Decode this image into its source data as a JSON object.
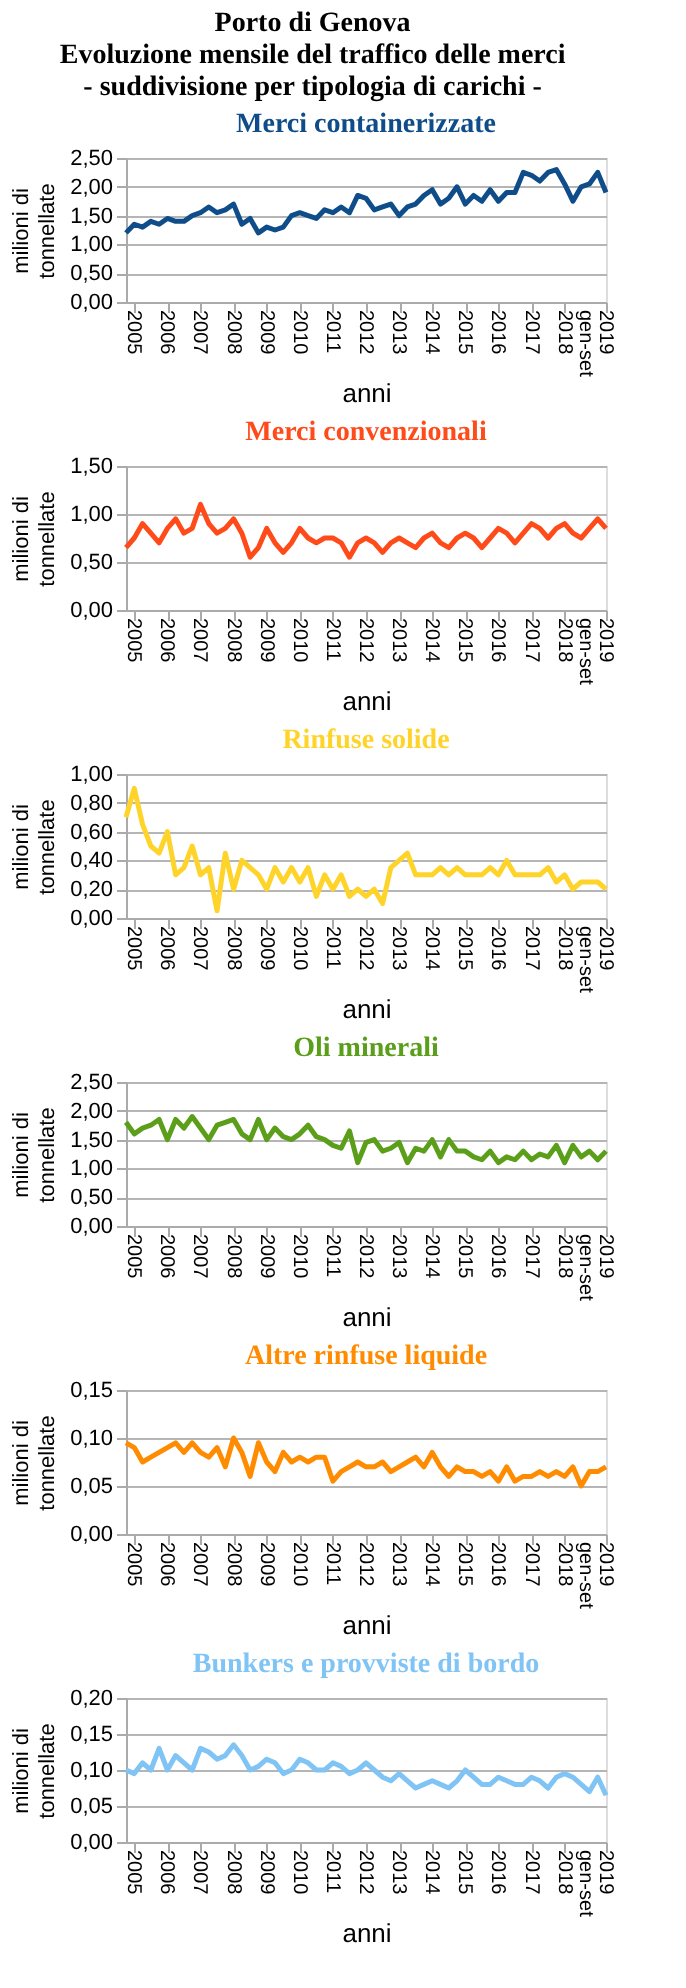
{
  "chart_data": [
    {
      "type": "line",
      "title": "Merci containerizzate",
      "annotations": [
        "Porto di Genova",
        "Evoluzione mensile del traffico delle merci",
        "- suddivisione per tipologia di carichi -"
      ],
      "xlabel": "anni",
      "ylabel": "milioni di tonnellate",
      "grid": "y",
      "line_style": "solid",
      "categories": [
        null,
        "2005",
        null,
        null,
        null,
        "2006",
        null,
        null,
        null,
        "2007",
        null,
        null,
        null,
        "2008",
        null,
        null,
        null,
        "2009",
        null,
        null,
        null,
        "2010",
        null,
        null,
        null,
        "2011",
        null,
        null,
        null,
        "2012",
        null,
        null,
        null,
        "2013",
        null,
        null,
        null,
        "2014",
        null,
        null,
        null,
        "2015",
        null,
        null,
        null,
        "2016",
        null,
        null,
        null,
        "2017",
        null,
        null,
        null,
        "2018",
        null,
        null,
        null,
        null,
        "2019 gen-set"
      ],
      "ylim": [
        0,
        2.5
      ],
      "yticks": [
        {
          "value": 0,
          "label": "0,00"
        },
        {
          "value": 0.5,
          "label": "0,50"
        },
        {
          "value": 1,
          "label": "1,00"
        },
        {
          "value": 1.5,
          "label": "1,50"
        },
        {
          "value": 2,
          "label": "2,00"
        },
        {
          "value": 2.5,
          "label": "2,50"
        }
      ],
      "series": [
        {
          "color": "#0f4c8a",
          "values": [
            1.2,
            1.35,
            1.3,
            1.4,
            1.35,
            1.45,
            1.4,
            1.4,
            1.5,
            1.55,
            1.65,
            1.55,
            1.6,
            1.7,
            1.35,
            1.45,
            1.2,
            1.3,
            1.25,
            1.3,
            1.5,
            1.55,
            1.5,
            1.45,
            1.6,
            1.55,
            1.65,
            1.55,
            1.85,
            1.8,
            1.6,
            1.65,
            1.7,
            1.5,
            1.65,
            1.7,
            1.85,
            1.95,
            1.7,
            1.8,
            2.0,
            1.7,
            1.85,
            1.75,
            1.95,
            1.75,
            1.9,
            1.9,
            2.25,
            2.2,
            2.1,
            2.25,
            2.3,
            2.05,
            1.75,
            2.0,
            2.05,
            2.25,
            1.9
          ]
        }
      ]
    },
    {
      "type": "line",
      "title": "Merci convenzionali",
      "xlabel": "anni",
      "ylabel": "milioni di tonnellate",
      "grid": "y",
      "line_style": "solid",
      "categories": [
        null,
        "2005",
        null,
        null,
        null,
        "2006",
        null,
        null,
        null,
        "2007",
        null,
        null,
        null,
        "2008",
        null,
        null,
        null,
        "2009",
        null,
        null,
        null,
        "2010",
        null,
        null,
        null,
        "2011",
        null,
        null,
        null,
        "2012",
        null,
        null,
        null,
        "2013",
        null,
        null,
        null,
        "2014",
        null,
        null,
        null,
        "2015",
        null,
        null,
        null,
        "2016",
        null,
        null,
        null,
        "2017",
        null,
        null,
        null,
        "2018",
        null,
        null,
        null,
        null,
        "2019 gen-set"
      ],
      "ylim": [
        0,
        1.5
      ],
      "yticks": [
        {
          "value": 0,
          "label": "0,00"
        },
        {
          "value": 0.5,
          "label": "0,50"
        },
        {
          "value": 1,
          "label": "1,00"
        },
        {
          "value": 1.5,
          "label": "1,50"
        }
      ],
      "series": [
        {
          "color": "#ff4a1a",
          "values": [
            0.65,
            0.75,
            0.9,
            0.8,
            0.7,
            0.85,
            0.95,
            0.8,
            0.85,
            1.1,
            0.9,
            0.8,
            0.85,
            0.95,
            0.8,
            0.55,
            0.65,
            0.85,
            0.7,
            0.6,
            0.7,
            0.85,
            0.75,
            0.7,
            0.75,
            0.75,
            0.7,
            0.55,
            0.7,
            0.75,
            0.7,
            0.6,
            0.7,
            0.75,
            0.7,
            0.65,
            0.75,
            0.8,
            0.7,
            0.65,
            0.75,
            0.8,
            0.75,
            0.65,
            0.75,
            0.85,
            0.8,
            0.7,
            0.8,
            0.9,
            0.85,
            0.75,
            0.85,
            0.9,
            0.8,
            0.75,
            0.85,
            0.95,
            0.85
          ]
        }
      ]
    },
    {
      "type": "line",
      "title": "Rinfuse solide",
      "xlabel": "anni",
      "ylabel": "milioni di tonnellate",
      "grid": "y",
      "line_style": "solid",
      "categories": [
        null,
        "2005",
        null,
        null,
        null,
        "2006",
        null,
        null,
        null,
        "2007",
        null,
        null,
        null,
        "2008",
        null,
        null,
        null,
        "2009",
        null,
        null,
        null,
        "2010",
        null,
        null,
        null,
        "2011",
        null,
        null,
        null,
        "2012",
        null,
        null,
        null,
        "2013",
        null,
        null,
        null,
        "2014",
        null,
        null,
        null,
        "2015",
        null,
        null,
        null,
        "2016",
        null,
        null,
        null,
        "2017",
        null,
        null,
        null,
        "2018",
        null,
        null,
        null,
        null,
        "2019 gen-set"
      ],
      "ylim": [
        0,
        1
      ],
      "yticks": [
        {
          "value": 0,
          "label": "0,00"
        },
        {
          "value": 0.2,
          "label": "0,20"
        },
        {
          "value": 0.4,
          "label": "0,40"
        },
        {
          "value": 0.6,
          "label": "0,60"
        },
        {
          "value": 0.8,
          "label": "0,80"
        },
        {
          "value": 1,
          "label": "1,00"
        }
      ],
      "series": [
        {
          "color": "#ffd42a",
          "values": [
            0.7,
            0.9,
            0.65,
            0.5,
            0.45,
            0.6,
            0.3,
            0.35,
            0.5,
            0.3,
            0.35,
            0.05,
            0.45,
            0.2,
            0.4,
            0.35,
            0.3,
            0.2,
            0.35,
            0.25,
            0.35,
            0.25,
            0.35,
            0.15,
            0.3,
            0.2,
            0.3,
            0.15,
            0.2,
            0.15,
            0.2,
            0.1,
            0.35,
            0.4,
            0.45,
            0.3,
            0.3,
            0.3,
            0.35,
            0.3,
            0.35,
            0.3,
            0.3,
            0.3,
            0.35,
            0.3,
            0.4,
            0.3,
            0.3,
            0.3,
            0.3,
            0.35,
            0.25,
            0.3,
            0.2,
            0.25,
            0.25,
            0.25,
            0.2
          ]
        }
      ]
    },
    {
      "type": "line",
      "title": "Oli minerali",
      "xlabel": "anni",
      "ylabel": "milioni di tonnellate",
      "grid": "y",
      "line_style": "solid",
      "categories": [
        null,
        "2005",
        null,
        null,
        null,
        "2006",
        null,
        null,
        null,
        "2007",
        null,
        null,
        null,
        "2008",
        null,
        null,
        null,
        "2009",
        null,
        null,
        null,
        "2010",
        null,
        null,
        null,
        "2011",
        null,
        null,
        null,
        "2012",
        null,
        null,
        null,
        "2013",
        null,
        null,
        null,
        "2014",
        null,
        null,
        null,
        "2015",
        null,
        null,
        null,
        "2016",
        null,
        null,
        null,
        "2017",
        null,
        null,
        null,
        "2018",
        null,
        null,
        null,
        null,
        "2019 gen-set"
      ],
      "ylim": [
        0,
        2.5
      ],
      "yticks": [
        {
          "value": 0,
          "label": "0,00"
        },
        {
          "value": 0.5,
          "label": "0,50"
        },
        {
          "value": 1,
          "label": "1,00"
        },
        {
          "value": 1.5,
          "label": "1,50"
        },
        {
          "value": 2,
          "label": "2,00"
        },
        {
          "value": 2.5,
          "label": "2,50"
        }
      ],
      "series": [
        {
          "color": "#5a9e1a",
          "values": [
            1.8,
            1.6,
            1.7,
            1.75,
            1.85,
            1.5,
            1.85,
            1.7,
            1.9,
            1.7,
            1.5,
            1.75,
            1.8,
            1.85,
            1.6,
            1.5,
            1.85,
            1.5,
            1.7,
            1.55,
            1.5,
            1.6,
            1.75,
            1.55,
            1.5,
            1.4,
            1.35,
            1.65,
            1.1,
            1.45,
            1.5,
            1.3,
            1.35,
            1.45,
            1.1,
            1.35,
            1.3,
            1.5,
            1.2,
            1.5,
            1.3,
            1.3,
            1.2,
            1.15,
            1.3,
            1.1,
            1.2,
            1.15,
            1.3,
            1.15,
            1.25,
            1.2,
            1.4,
            1.1,
            1.4,
            1.2,
            1.3,
            1.15,
            1.3
          ]
        }
      ]
    },
    {
      "type": "line",
      "title": "Altre rinfuse liquide",
      "xlabel": "anni",
      "ylabel": "milioni di tonnellate",
      "grid": "y",
      "line_style": "solid",
      "categories": [
        null,
        "2005",
        null,
        null,
        null,
        "2006",
        null,
        null,
        null,
        "2007",
        null,
        null,
        null,
        "2008",
        null,
        null,
        null,
        "2009",
        null,
        null,
        null,
        "2010",
        null,
        null,
        null,
        "2011",
        null,
        null,
        null,
        "2012",
        null,
        null,
        null,
        "2013",
        null,
        null,
        null,
        "2014",
        null,
        null,
        null,
        "2015",
        null,
        null,
        null,
        "2016",
        null,
        null,
        null,
        "2017",
        null,
        null,
        null,
        "2018",
        null,
        null,
        null,
        null,
        "2019 gen-set"
      ],
      "ylim": [
        0,
        0.15
      ],
      "yticks": [
        {
          "value": 0,
          "label": "0,00"
        },
        {
          "value": 0.05,
          "label": "0,05"
        },
        {
          "value": 0.1,
          "label": "0,10"
        },
        {
          "value": 0.15,
          "label": "0,15"
        }
      ],
      "series": [
        {
          "color": "#ff8c00",
          "values": [
            0.095,
            0.09,
            0.075,
            0.08,
            0.085,
            0.09,
            0.095,
            0.085,
            0.095,
            0.085,
            0.08,
            0.09,
            0.07,
            0.1,
            0.085,
            0.06,
            0.095,
            0.075,
            0.065,
            0.085,
            0.075,
            0.08,
            0.075,
            0.08,
            0.08,
            0.055,
            0.065,
            0.07,
            0.075,
            0.07,
            0.07,
            0.075,
            0.065,
            0.07,
            0.075,
            0.08,
            0.07,
            0.085,
            0.07,
            0.06,
            0.07,
            0.065,
            0.065,
            0.06,
            0.065,
            0.055,
            0.07,
            0.055,
            0.06,
            0.06,
            0.065,
            0.06,
            0.065,
            0.06,
            0.07,
            0.05,
            0.065,
            0.065,
            0.07
          ]
        }
      ]
    },
    {
      "type": "line",
      "title": "Bunkers e provviste di bordo",
      "xlabel": "anni",
      "ylabel": "milioni di tonnellate",
      "grid": "y",
      "line_style": "solid",
      "categories": [
        null,
        "2005",
        null,
        null,
        null,
        "2006",
        null,
        null,
        null,
        "2007",
        null,
        null,
        null,
        "2008",
        null,
        null,
        null,
        "2009",
        null,
        null,
        null,
        "2010",
        null,
        null,
        null,
        "2011",
        null,
        null,
        null,
        "2012",
        null,
        null,
        null,
        "2013",
        null,
        null,
        null,
        "2014",
        null,
        null,
        null,
        "2015",
        null,
        null,
        null,
        "2016",
        null,
        null,
        null,
        "2017",
        null,
        null,
        null,
        "2018",
        null,
        null,
        null,
        null,
        "2019 gen-set"
      ],
      "ylim": [
        0,
        0.2
      ],
      "yticks": [
        {
          "value": 0,
          "label": "0,00"
        },
        {
          "value": 0.05,
          "label": "0,05"
        },
        {
          "value": 0.1,
          "label": "0,10"
        },
        {
          "value": 0.15,
          "label": "0,15"
        },
        {
          "value": 0.2,
          "label": "0,20"
        }
      ],
      "series": [
        {
          "color": "#7fc4f5",
          "values": [
            0.1,
            0.095,
            0.11,
            0.1,
            0.13,
            0.1,
            0.12,
            0.11,
            0.1,
            0.13,
            0.125,
            0.115,
            0.12,
            0.135,
            0.12,
            0.1,
            0.105,
            0.115,
            0.11,
            0.095,
            0.1,
            0.115,
            0.11,
            0.1,
            0.1,
            0.11,
            0.105,
            0.095,
            0.1,
            0.11,
            0.1,
            0.09,
            0.085,
            0.095,
            0.085,
            0.075,
            0.08,
            0.085,
            0.08,
            0.075,
            0.085,
            0.1,
            0.09,
            0.08,
            0.08,
            0.09,
            0.085,
            0.08,
            0.08,
            0.09,
            0.085,
            0.075,
            0.09,
            0.095,
            0.09,
            0.08,
            0.07,
            0.09,
            0.065
          ]
        }
      ]
    }
  ]
}
